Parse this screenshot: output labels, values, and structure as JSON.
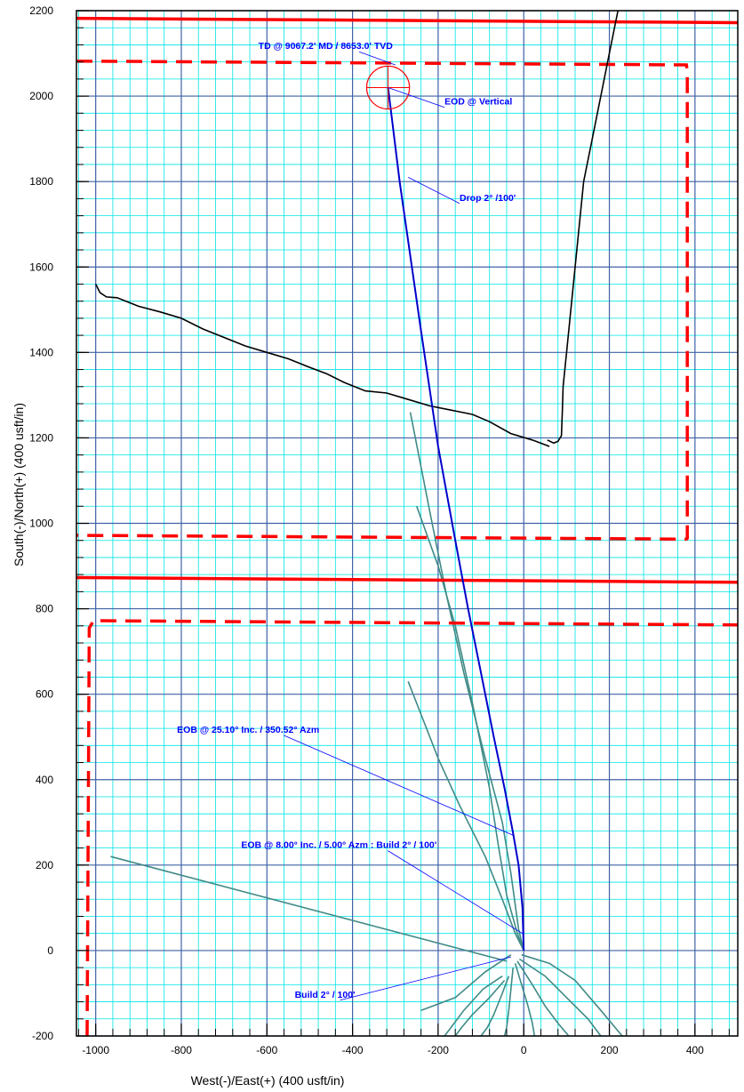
{
  "chart_data": {
    "type": "line",
    "xlabel": "West(-)/East(+) (400 usft/in)",
    "ylabel": "South(-)/North(+) (400 usft/in)",
    "xlim": [
      -1045,
      500
    ],
    "ylim": [
      -200,
      2200
    ],
    "x_ticks": [
      -1000,
      -800,
      -600,
      -400,
      -200,
      0,
      200,
      400
    ],
    "y_ticks": [
      -200,
      0,
      200,
      400,
      600,
      800,
      1000,
      1200,
      1400,
      1600,
      1800,
      2000,
      2200
    ],
    "x_tick_labels": [
      "-1000",
      "-800",
      "-600",
      "-400",
      "-200",
      "0",
      "200",
      "400"
    ],
    "y_tick_labels": [
      "-200",
      "0",
      "200",
      "400",
      "600",
      "800",
      "1000",
      "1200",
      "1400",
      "1600",
      "1800",
      "2000",
      "2200"
    ],
    "grid": true,
    "colors": {
      "minor_grid": "#00e5e5",
      "major_grid": "#3f62a6",
      "plan_well": "#0000cc",
      "offset_wells": "#3f8a86",
      "survey_line": "#000000",
      "lease_line": "#ff0000",
      "annotation": "#0000ff",
      "target": "#ff0000"
    },
    "series": [
      {
        "role": "plan_well",
        "x": [
          0,
          -3,
          -12,
          -25,
          -45,
          -70,
          -100,
          -130,
          -160,
          -200,
          -240,
          -290,
          -317
        ],
        "y": [
          0,
          100,
          200,
          275,
          380,
          500,
          650,
          800,
          960,
          1180,
          1450,
          1800,
          2020
        ]
      },
      {
        "role": "survey_line",
        "x": [
          -1000,
          -990,
          -975,
          -950,
          -900,
          -850,
          -800,
          -750,
          -700,
          -650,
          -600,
          -550,
          -500,
          -460,
          -420,
          -370,
          -320,
          -270,
          -220,
          -170,
          -120,
          -80,
          -30,
          20,
          60
        ],
        "y": [
          1560,
          1540,
          1530,
          1528,
          1508,
          1495,
          1480,
          1455,
          1435,
          1415,
          1400,
          1385,
          1365,
          1350,
          1330,
          1310,
          1305,
          1290,
          1275,
          1265,
          1255,
          1238,
          1210,
          1195,
          1180
        ]
      },
      {
        "role": "survey_line",
        "x": [
          55,
          70,
          80,
          88,
          90,
          92,
          100,
          120,
          140,
          160,
          180,
          200,
          220
        ],
        "y": [
          1195,
          1188,
          1192,
          1205,
          1260,
          1320,
          1400,
          1600,
          1800,
          1900,
          2000,
          2100,
          2200
        ]
      },
      {
        "role": "offset_well",
        "x": [
          0,
          -15,
          -40,
          -60,
          -80,
          -120,
          -160,
          -200,
          -250
        ],
        "y": [
          0,
          40,
          130,
          250,
          380,
          580,
          760,
          900,
          1040
        ]
      },
      {
        "role": "offset_well",
        "x": [
          0,
          -12,
          -30,
          -50,
          -90,
          -140,
          -180,
          -220,
          -265
        ],
        "y": [
          0,
          50,
          180,
          300,
          450,
          650,
          830,
          1030,
          1260
        ]
      },
      {
        "role": "offset_well",
        "x": [
          0,
          -20,
          -50,
          -90,
          -150,
          -200,
          -270
        ],
        "y": [
          0,
          40,
          120,
          220,
          340,
          450,
          630
        ]
      },
      {
        "role": "offset_well",
        "x": [
          -40,
          -965
        ],
        "y": [
          -25,
          220
        ]
      },
      {
        "role": "offset_well",
        "x": [
          -30,
          -90,
          -160,
          -240
        ],
        "y": [
          -10,
          -50,
          -110,
          -140
        ]
      },
      {
        "role": "offset_well",
        "x": [
          -10,
          50,
          100,
          150,
          180
        ],
        "y": [
          -20,
          -60,
          -110,
          -160,
          -200
        ]
      },
      {
        "role": "offset_well",
        "x": [
          -5,
          60,
          120,
          180,
          230
        ],
        "y": [
          -10,
          -30,
          -70,
          -140,
          -200
        ]
      },
      {
        "role": "offset_well",
        "x": [
          -15,
          20,
          50,
          80,
          105
        ],
        "y": [
          -25,
          -80,
          -130,
          -170,
          -200
        ]
      },
      {
        "role": "offset_well",
        "x": [
          -20,
          -5,
          10,
          20,
          25
        ],
        "y": [
          -30,
          -80,
          -130,
          -170,
          -200
        ]
      },
      {
        "role": "offset_well",
        "x": [
          -25,
          -30,
          -35,
          -40,
          -45
        ],
        "y": [
          -40,
          -90,
          -140,
          -180,
          -200
        ]
      },
      {
        "role": "offset_well",
        "x": [
          -35,
          -50,
          -70,
          -85,
          -100
        ],
        "y": [
          -60,
          -100,
          -150,
          -180,
          -200
        ]
      },
      {
        "role": "offset_well",
        "x": [
          -45,
          -80,
          -120,
          -145,
          -160
        ],
        "y": [
          -70,
          -110,
          -150,
          -180,
          -200
        ]
      },
      {
        "role": "offset_well",
        "x": [
          -50,
          -95,
          -140,
          -170,
          -185
        ],
        "y": [
          -60,
          -90,
          -140,
          -180,
          -200
        ]
      }
    ],
    "lease_lines": [
      {
        "style": "solid",
        "x": [
          -1045,
          500
        ],
        "y": [
          2182,
          2172
        ]
      },
      {
        "style": "solid",
        "x": [
          -1045,
          500
        ],
        "y": [
          873,
          862
        ]
      },
      {
        "style": "dashed",
        "x": [
          -1045,
          380,
          382,
          382,
          380,
          -1045
        ],
        "y": [
          2082,
          2073,
          2060,
          965,
          963,
          972
        ]
      },
      {
        "style": "dashed",
        "x": [
          -1020,
          -1015,
          -1005,
          500
        ],
        "y": [
          -200,
          755,
          772,
          762
        ]
      }
    ],
    "target": {
      "x": -317,
      "y": 2020,
      "radius": 50
    },
    "annotations": [
      {
        "text": "TD @ 9067.2' MD / 8653.0' TVD",
        "anchor_x": -300,
        "anchor_y": 2073,
        "label_x": -620,
        "label_y": 2110
      },
      {
        "text": "EOD @ Vertical",
        "anchor_x": -317,
        "anchor_y": 2020,
        "label_x": -185,
        "label_y": 1980
      },
      {
        "text": "Drop 2° /100'",
        "anchor_x": -270,
        "anchor_y": 1810,
        "label_x": -150,
        "label_y": 1755
      },
      {
        "text": "EOB @ 25.10° Inc. / 350.52° Azm",
        "anchor_x": -25,
        "anchor_y": 270,
        "label_x": -810,
        "label_y": 510
      },
      {
        "text": "EOB @ 8.00° Inc. / 5.00° Azm : Build 2° / 100'",
        "anchor_x": -3,
        "anchor_y": 40,
        "label_x": -660,
        "label_y": 240
      },
      {
        "text": "Build 2° / 100'",
        "anchor_x": -30,
        "anchor_y": -15,
        "label_x": -535,
        "label_y": -110
      }
    ]
  }
}
